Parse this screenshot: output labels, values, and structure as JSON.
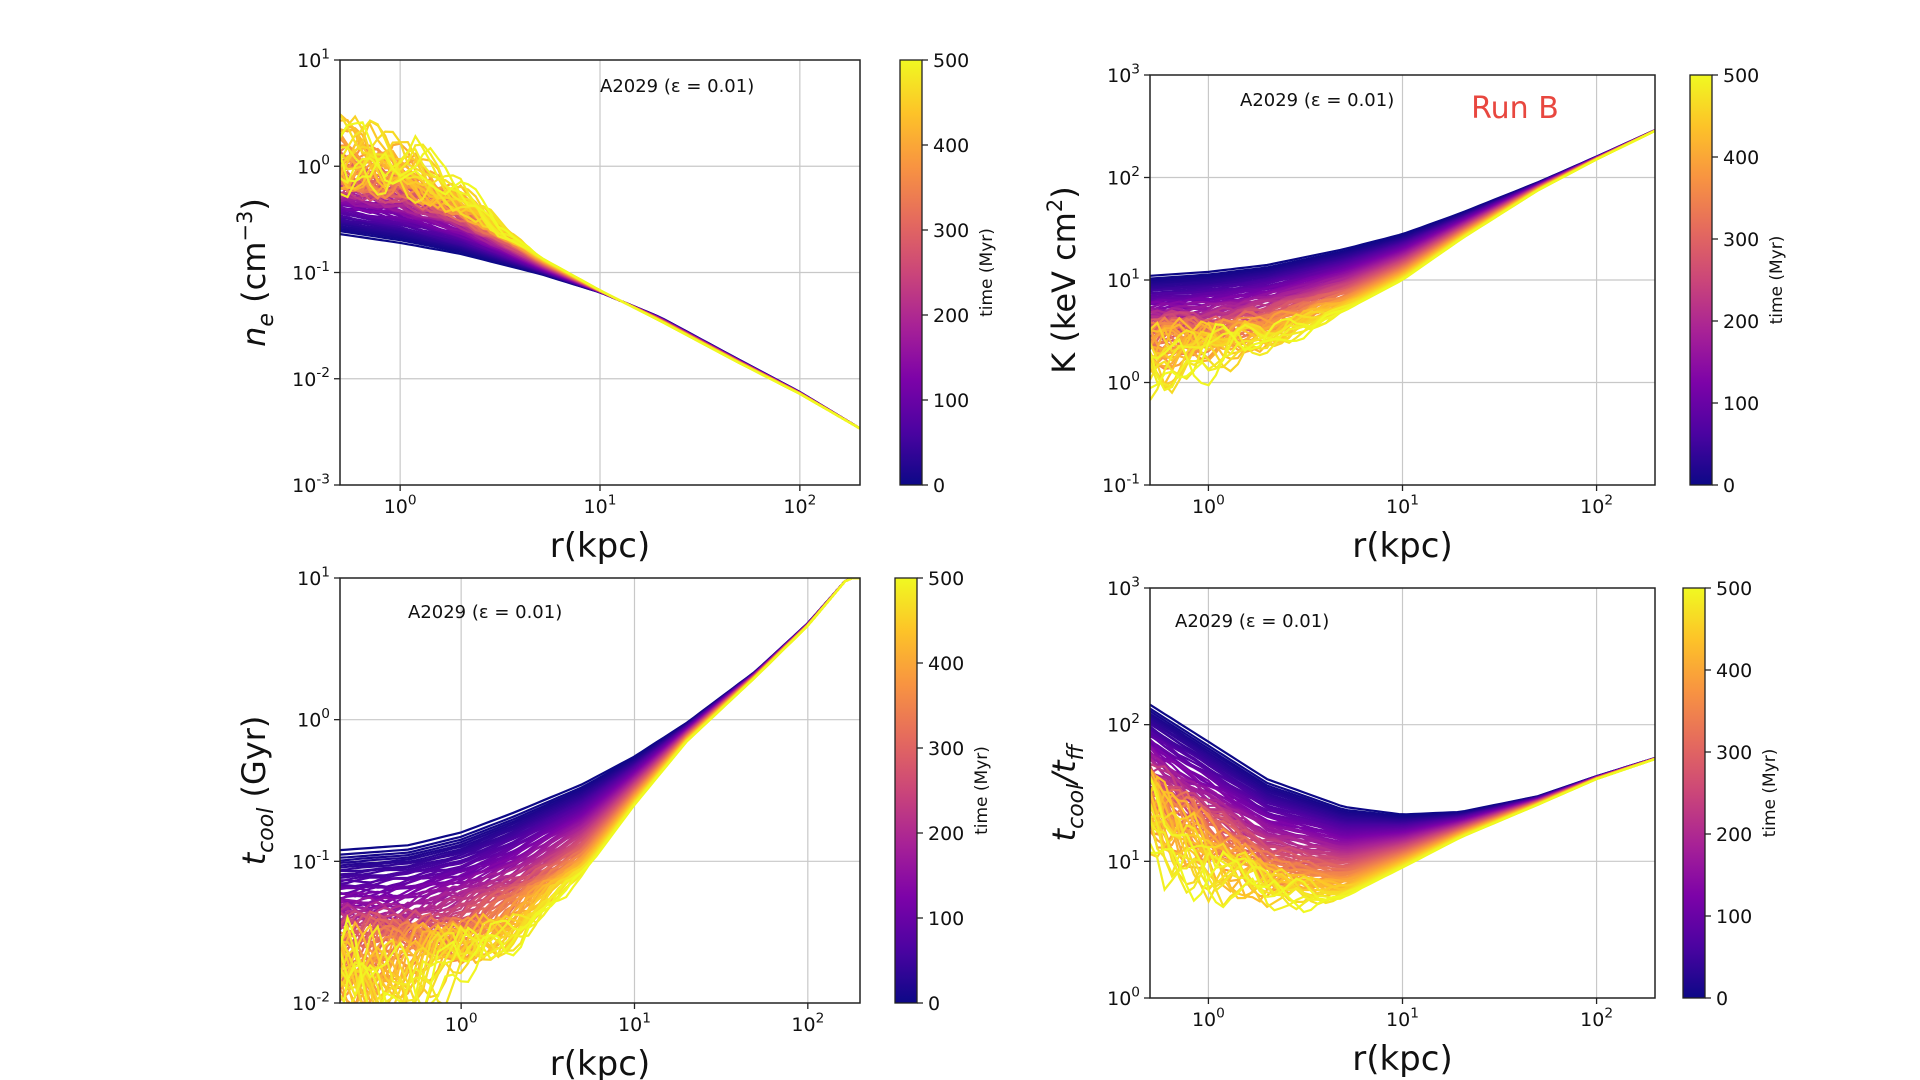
{
  "figure": {
    "annotation": "Run B",
    "annotation_color": "#e8473f"
  },
  "chart_data": [
    {
      "id": "ne",
      "type": "line",
      "title": "",
      "label": "A2029 (ε = 0.01)",
      "xlabel": "r(kpc)",
      "ylabel_main": "n",
      "ylabel_sub": "e",
      "ylabel_rest": " (cm",
      "ylabel_sup": "−3",
      "ylabel_close": ")",
      "xscale": "log",
      "yscale": "log",
      "xlim": [
        0.5,
        200
      ],
      "ylim": [
        0.001,
        10
      ],
      "xticks": [
        1,
        10,
        100
      ],
      "yticks": [
        0.001,
        0.01,
        0.1,
        1,
        10
      ],
      "grid": true,
      "colorbar": {
        "label": "time (Myr)",
        "min": 0,
        "max": 500,
        "ticks": [
          0,
          100,
          200,
          300,
          400,
          500
        ]
      },
      "series_count": 100,
      "profile_start": {
        "r": [
          0.5,
          1,
          2,
          5,
          10,
          20,
          50,
          100,
          200
        ],
        "y": [
          0.23,
          0.19,
          0.15,
          0.097,
          0.065,
          0.038,
          0.015,
          0.0075,
          0.0034
        ]
      },
      "profile_end": {
        "r": [
          0.5,
          1,
          2,
          5,
          10,
          20,
          50,
          100,
          200
        ],
        "y": [
          1.6,
          1.2,
          0.55,
          0.14,
          0.068,
          0.035,
          0.014,
          0.0072,
          0.0034
        ]
      },
      "noise_below_r": 5,
      "noise_amplitude": 0.8
    },
    {
      "id": "K",
      "type": "line",
      "title": "",
      "label": "A2029 (ε = 0.01)",
      "xlabel": "r(kpc)",
      "ylabel_main": "K (keV cm",
      "ylabel_sub": "",
      "ylabel_rest": "",
      "ylabel_sup": "2",
      "ylabel_close": ")",
      "xscale": "log",
      "yscale": "log",
      "xlim": [
        0.5,
        200
      ],
      "ylim": [
        0.1,
        1000
      ],
      "xticks": [
        1,
        10,
        100
      ],
      "yticks": [
        0.1,
        1,
        10,
        100,
        1000
      ],
      "grid": true,
      "colorbar": {
        "label": "time (Myr)",
        "min": 0,
        "max": 500,
        "ticks": [
          0,
          100,
          200,
          300,
          400,
          500
        ]
      },
      "series_count": 100,
      "profile_start": {
        "r": [
          0.5,
          1,
          2,
          5,
          10,
          20,
          50,
          100,
          200
        ],
        "y": [
          11,
          12,
          14,
          20,
          28,
          45,
          90,
          160,
          290
        ]
      },
      "profile_end": {
        "r": [
          0.5,
          1,
          2,
          5,
          10,
          20,
          50,
          100,
          200
        ],
        "y": [
          1.5,
          1.8,
          2.5,
          5,
          10,
          25,
          75,
          150,
          285
        ]
      },
      "noise_below_r": 6,
      "noise_amplitude": 0.7
    },
    {
      "id": "tcool",
      "type": "line",
      "title": "",
      "label": "A2029 (ε = 0.01)",
      "xlabel": "r(kpc)",
      "ylabel_main": "t",
      "ylabel_sub": "cool",
      "ylabel_rest": " (Gyr)",
      "ylabel_sup": "",
      "ylabel_close": "",
      "xscale": "log",
      "yscale": "log",
      "xlim": [
        0.2,
        200
      ],
      "ylim": [
        0.01,
        10
      ],
      "xticks": [
        1,
        10,
        100
      ],
      "yticks": [
        0.01,
        0.1,
        1,
        10
      ],
      "grid": true,
      "colorbar": {
        "label": "time (Myr)",
        "min": 0,
        "max": 500,
        "ticks": [
          0,
          100,
          200,
          300,
          400,
          500
        ]
      },
      "series_count": 100,
      "profile_start": {
        "r": [
          0.2,
          0.5,
          1,
          2,
          5,
          10,
          20,
          50,
          100,
          170
        ],
        "y": [
          0.12,
          0.13,
          0.16,
          0.22,
          0.35,
          0.55,
          0.95,
          2.2,
          4.8,
          10
        ]
      },
      "profile_end": {
        "r": [
          0.2,
          0.5,
          1,
          2,
          5,
          10,
          20,
          50,
          100,
          170
        ],
        "y": [
          0.012,
          0.014,
          0.018,
          0.03,
          0.08,
          0.25,
          0.7,
          2.0,
          4.6,
          10
        ]
      },
      "noise_below_r": 6,
      "noise_amplitude": 0.8
    },
    {
      "id": "tratio",
      "type": "line",
      "title": "",
      "label": "A2029 (ε = 0.01)",
      "xlabel": "r(kpc)",
      "ylabel_main": "t",
      "ylabel_sub": "cool",
      "ylabel_rest": "/t",
      "ylabel_sup": "",
      "ylabel_sub2": "ff",
      "ylabel_close": "",
      "xscale": "log",
      "yscale": "log",
      "xlim": [
        0.5,
        200
      ],
      "ylim": [
        1,
        1000
      ],
      "xticks": [
        1,
        10,
        100
      ],
      "yticks": [
        1,
        10,
        100,
        1000
      ],
      "grid": true,
      "colorbar": {
        "label": "time (Myr)",
        "min": 0,
        "max": 500,
        "ticks": [
          0,
          100,
          200,
          300,
          400,
          500
        ]
      },
      "series_count": 100,
      "profile_start": {
        "r": [
          0.5,
          1,
          2,
          5,
          10,
          20,
          50,
          100,
          200
        ],
        "y": [
          140,
          75,
          40,
          25,
          22,
          23,
          30,
          42,
          57
        ]
      },
      "profile_end": {
        "r": [
          0.5,
          1,
          2,
          5,
          10,
          20,
          50,
          100,
          200
        ],
        "y": [
          18,
          9,
          5.5,
          5.5,
          9,
          15,
          26,
          40,
          56
        ]
      },
      "noise_below_r": 6,
      "noise_amplitude": 0.7
    }
  ]
}
